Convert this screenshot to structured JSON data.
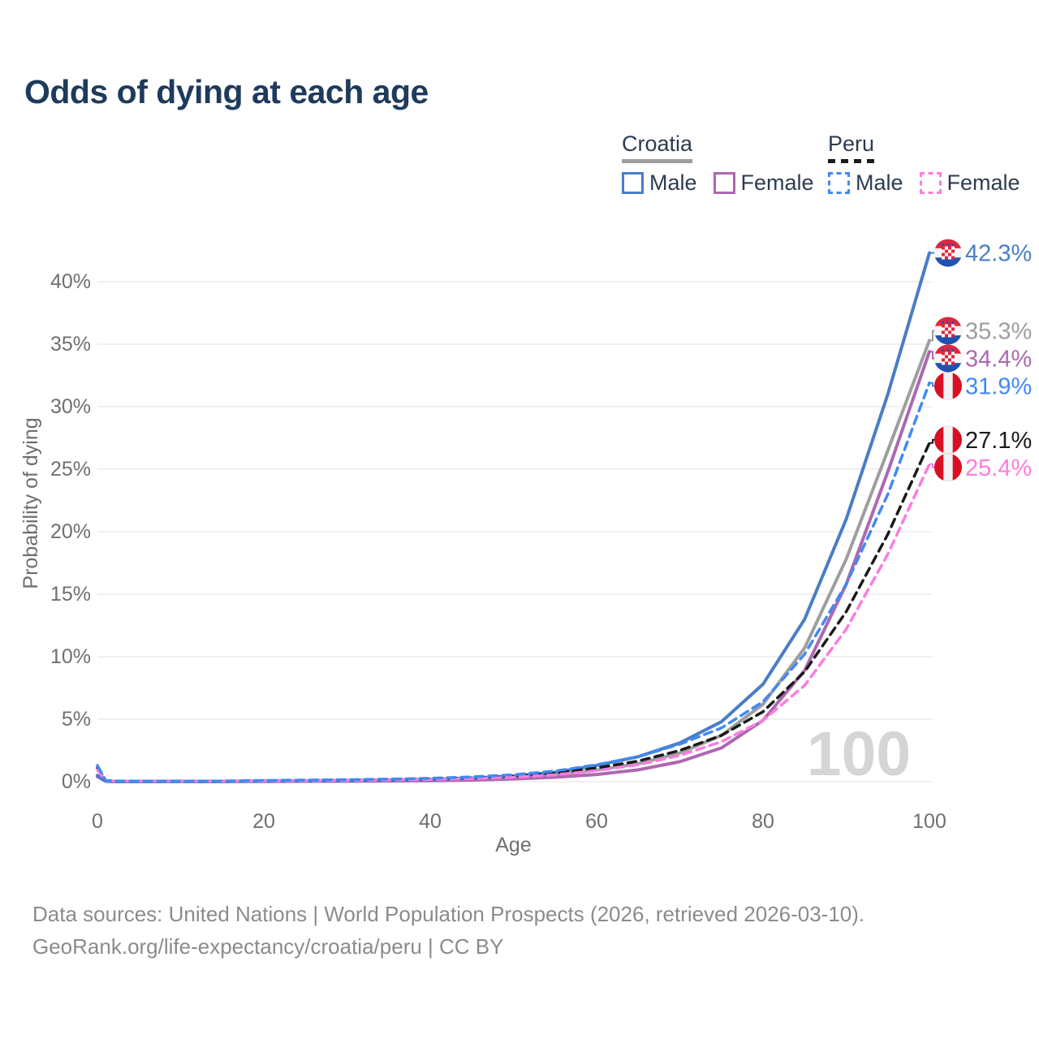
{
  "title": "Odds of dying at each age",
  "legend": {
    "groups": [
      {
        "id": "croatia",
        "label": "Croatia",
        "line_style": "solid",
        "line_color": "#9e9e9e",
        "items": [
          {
            "id": "croatia-male",
            "label": "Male",
            "color": "#4a7dc6",
            "dash": false
          },
          {
            "id": "croatia-female",
            "label": "Female",
            "color": "#ad68b0",
            "dash": false
          }
        ]
      },
      {
        "id": "peru",
        "label": "Peru",
        "line_style": "dashed",
        "line_color": "#1a1a1a",
        "items": [
          {
            "id": "peru-male",
            "label": "Male",
            "color": "#4189f4",
            "dash": true
          },
          {
            "id": "peru-female",
            "label": "Female",
            "color": "#fb7ce0",
            "dash": true
          }
        ]
      }
    ]
  },
  "chart_data": {
    "type": "line",
    "title": "Odds of dying at each age",
    "xlabel": "Age",
    "ylabel": "Probability of dying",
    "x_ticks": [
      0,
      20,
      40,
      60,
      80,
      100
    ],
    "y_ticks": [
      "0%",
      "5%",
      "10%",
      "15%",
      "20%",
      "25%",
      "30%",
      "35%",
      "40%"
    ],
    "y_tick_step_pct": 5,
    "xlim": [
      0,
      100
    ],
    "ylim_pct": [
      0,
      43
    ],
    "grid": "horizontal",
    "legend_position": "top-right",
    "watermark": "100",
    "ages": [
      0,
      1,
      2,
      5,
      10,
      15,
      20,
      25,
      30,
      35,
      40,
      45,
      50,
      55,
      60,
      65,
      70,
      75,
      80,
      85,
      90,
      95,
      100
    ],
    "series": [
      {
        "name": "Croatia Male",
        "flag": "croatia",
        "color": "#4a7dc6",
        "dash": false,
        "end_label": "42.3%",
        "values": [
          0.5,
          0.04,
          0.02,
          0.01,
          0.01,
          0.02,
          0.05,
          0.06,
          0.08,
          0.11,
          0.16,
          0.27,
          0.45,
          0.75,
          1.3,
          2.0,
          3.1,
          4.8,
          7.8,
          13.0,
          21.0,
          31.0,
          42.3
        ]
      },
      {
        "name": "Croatia",
        "flag": "croatia",
        "color": "#9e9e9e",
        "dash": false,
        "end_label": "35.3%",
        "values": [
          0.45,
          0.035,
          0.02,
          0.01,
          0.01,
          0.015,
          0.04,
          0.05,
          0.06,
          0.09,
          0.12,
          0.2,
          0.33,
          0.55,
          0.92,
          1.45,
          2.3,
          3.7,
          6.2,
          10.7,
          17.8,
          26.5,
          35.3
        ]
      },
      {
        "name": "Croatia Female",
        "flag": "croatia",
        "color": "#ad68b0",
        "dash": false,
        "end_label": "34.4%",
        "values": [
          0.4,
          0.03,
          0.015,
          0.01,
          0.01,
          0.01,
          0.02,
          0.03,
          0.04,
          0.06,
          0.08,
          0.13,
          0.22,
          0.36,
          0.58,
          0.95,
          1.6,
          2.7,
          4.9,
          8.9,
          15.8,
          24.8,
          34.4
        ]
      },
      {
        "name": "Peru Male",
        "flag": "peru",
        "color": "#4189f4",
        "dash": true,
        "end_label": "31.9%",
        "values": [
          1.3,
          0.1,
          0.06,
          0.04,
          0.03,
          0.05,
          0.1,
          0.13,
          0.16,
          0.2,
          0.27,
          0.38,
          0.55,
          0.85,
          1.35,
          2.0,
          3.0,
          4.3,
          6.4,
          10.2,
          15.8,
          23.0,
          31.9
        ]
      },
      {
        "name": "Peru",
        "flag": "peru",
        "color": "#1a1a1a",
        "dash": true,
        "end_label": "27.1%",
        "values": [
          1.1,
          0.09,
          0.05,
          0.035,
          0.03,
          0.04,
          0.08,
          0.1,
          0.12,
          0.16,
          0.21,
          0.3,
          0.44,
          0.68,
          1.1,
          1.65,
          2.5,
          3.7,
          5.6,
          8.8,
          13.6,
          19.8,
          27.1
        ]
      },
      {
        "name": "Peru Female",
        "flag": "peru",
        "color": "#fb7ce0",
        "dash": true,
        "end_label": "25.4%",
        "values": [
          0.95,
          0.08,
          0.05,
          0.03,
          0.025,
          0.035,
          0.06,
          0.08,
          0.1,
          0.13,
          0.17,
          0.25,
          0.36,
          0.55,
          0.88,
          1.35,
          2.1,
          3.2,
          4.9,
          7.7,
          12.2,
          18.2,
          25.4
        ]
      }
    ],
    "colors": {
      "grid": "#ececec",
      "axis_text": "#6f6f6f",
      "watermark": "#d5d5d5",
      "croatia_flag_red": "#e1263d",
      "croatia_flag_blue": "#2152b3",
      "peru_flag_red": "#d91023"
    }
  },
  "footer": {
    "line1": "Data sources: United Nations | World Population Prospects (2026, retrieved 2026-03-10).",
    "line2": "GeoRank.org/life-expectancy/croatia/peru | CC BY"
  }
}
